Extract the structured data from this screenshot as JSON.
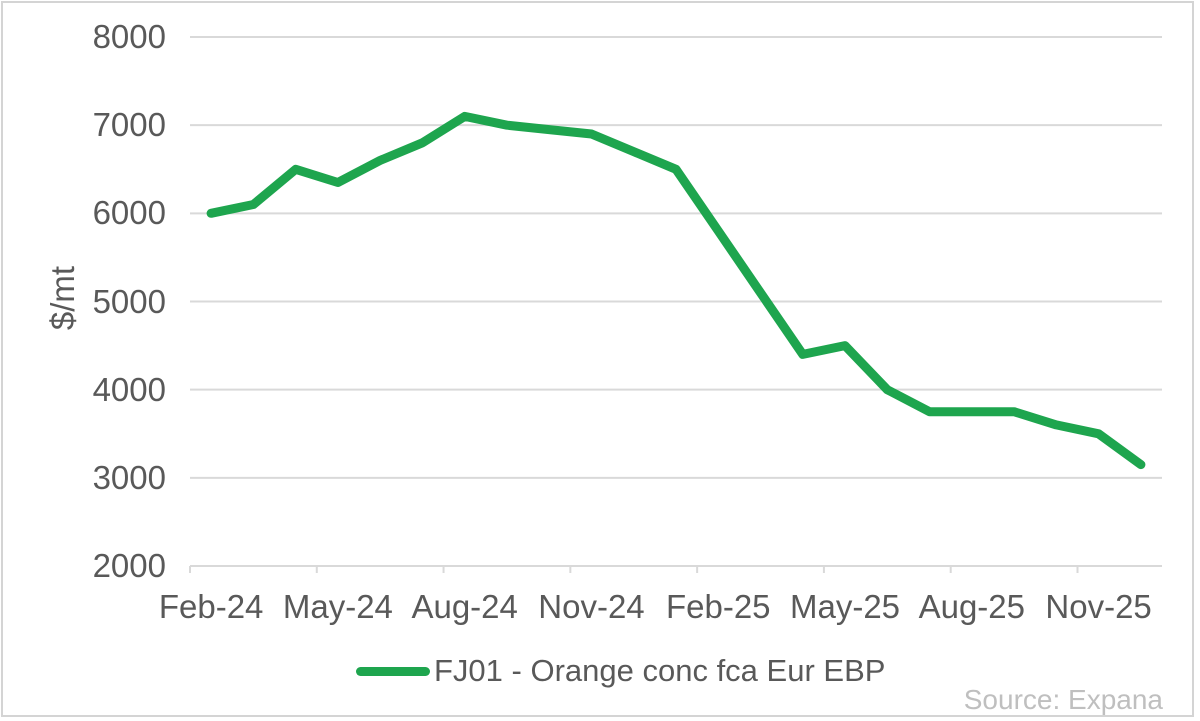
{
  "chart_data": {
    "type": "line",
    "title": "",
    "ylabel": "$/mt",
    "xlabel": "",
    "ylim": [
      2000,
      8000
    ],
    "ytick_step": 1000,
    "x_label_every": 3,
    "grid": "horizontal",
    "legend_position": "bottom-center",
    "categories": [
      "Feb-24",
      "Mar-24",
      "Apr-24",
      "May-24",
      "Jun-24",
      "Jul-24",
      "Aug-24",
      "Sep-24",
      "Oct-24",
      "Nov-24",
      "Dec-24",
      "Jan-25",
      "Feb-25",
      "Mar-25",
      "Apr-25",
      "May-25",
      "Jun-25",
      "Jul-25",
      "Aug-25",
      "Sep-25",
      "Oct-25",
      "Nov-25",
      "Dec-25"
    ],
    "series": [
      {
        "name": "FJ01 - Orange conc fca Eur EBP",
        "color": "#1ea54e",
        "values": [
          6000,
          6100,
          6500,
          6350,
          6600,
          6800,
          7100,
          7000,
          6950,
          6900,
          6700,
          6500,
          5800,
          5100,
          4400,
          4500,
          4000,
          3750,
          3750,
          3750,
          3600,
          3500,
          3150
        ]
      }
    ],
    "source": "Source: Expana"
  },
  "colors": {
    "accent_green": "#1ea54e",
    "axis_text": "#595959",
    "gridline": "#d9d9d9",
    "tick_mark": "#d9d9d9",
    "source_text": "#bfbfbf",
    "frame_border": "#d4d4d4",
    "background": "#ffffff"
  }
}
